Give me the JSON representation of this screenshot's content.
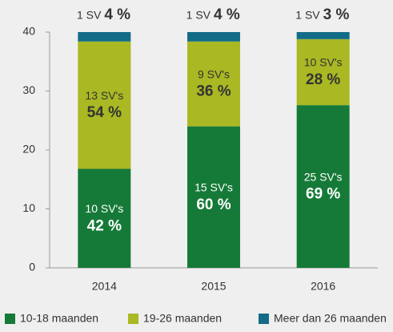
{
  "chart_data": {
    "type": "bar",
    "stacked": true,
    "categories": [
      "2014",
      "2015",
      "2016"
    ],
    "series": [
      {
        "name": "10-18 maanden",
        "color": "#157a38",
        "values": [
          16.8,
          24,
          27.6
        ],
        "sv_labels": [
          "10 SV's",
          "15 SV's",
          "25 SV's"
        ],
        "pct_labels": [
          "42 %",
          "60 %",
          "69 %"
        ]
      },
      {
        "name": "19-26 maanden",
        "color": "#a9b823",
        "values": [
          21.6,
          14.4,
          11.2
        ],
        "sv_labels": [
          "13 SV's",
          "9 SV's",
          "10 SV's"
        ],
        "pct_labels": [
          "54 %",
          "36 %",
          "28 %"
        ]
      },
      {
        "name": "Meer dan 26 maanden",
        "color": "#136c87",
        "values": [
          1.6,
          1.6,
          1.2
        ],
        "sv_labels": [
          "1 SV",
          "1 SV",
          "1 SV"
        ],
        "pct_labels": [
          "4 %",
          "4 %",
          "3 %"
        ]
      }
    ],
    "ylim": [
      0,
      40
    ],
    "yticks": [
      0,
      10,
      20,
      30,
      40
    ]
  }
}
